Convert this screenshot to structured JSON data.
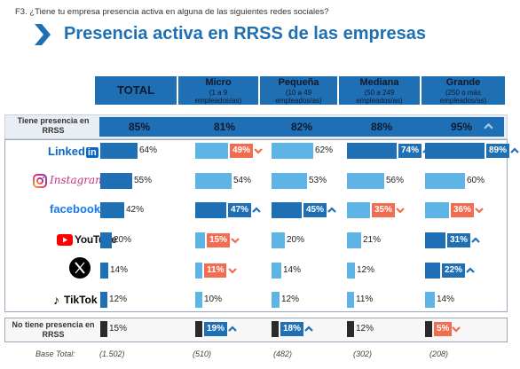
{
  "question": "F3. ¿Tiene tu empresa presencia activa en alguna de las siguientes redes sociales?",
  "title": "Presencia activa en RRSS de las empresas",
  "colors": {
    "primary": "#1f6fb4",
    "light": "#5fb4e6",
    "up": "#1f6fb4",
    "down": "#f26d4f",
    "dark": "#2b2b2b"
  },
  "headers": {
    "total": "TOTAL",
    "segments": [
      {
        "name": "Micro",
        "sub1": "(1 a 9",
        "sub2": "empleados/as)"
      },
      {
        "name": "Pequeña",
        "sub1": "(10 a 49",
        "sub2": "empleados/as)"
      },
      {
        "name": "Mediana",
        "sub1": "(50 a 249",
        "sub2": "empleados/as)"
      },
      {
        "name": "Grande",
        "sub1": "(250 o más",
        "sub2": "empleados/as)"
      }
    ]
  },
  "presence": {
    "label1": "Tiene presencia en",
    "label2": "RRSS",
    "values": [
      "85%",
      "81%",
      "82%",
      "88%",
      "95%"
    ],
    "arrow": "up"
  },
  "no_presence": {
    "label1": "No tiene presencia en",
    "label2": "RRSS"
  },
  "logos": {
    "linkedin": "Linked",
    "linkedin_in": "in",
    "instagram": "Instagram",
    "facebook": "facebook",
    "youtube": "YouTube",
    "tiktok": "TikTok"
  },
  "base": {
    "label": "Base Total:",
    "values": [
      "(1.502)",
      "(510)",
      "(482)",
      "(302)",
      "(208)"
    ]
  },
  "chart_data": {
    "type": "bar",
    "title": "Presencia activa en RRSS de las empresas",
    "categories": [
      "TOTAL",
      "Micro",
      "Pequeña",
      "Mediana",
      "Grande"
    ],
    "rows": [
      {
        "name": "LinkedIn",
        "values": [
          64,
          49,
          62,
          74,
          89
        ],
        "sig": [
          "",
          "down",
          "",
          "up",
          "up"
        ]
      },
      {
        "name": "Instagram",
        "values": [
          55,
          54,
          53,
          56,
          60
        ],
        "sig": [
          "",
          "",
          "",
          "",
          ""
        ]
      },
      {
        "name": "facebook",
        "values": [
          42,
          47,
          45,
          35,
          36
        ],
        "sig": [
          "",
          "up",
          "up",
          "down",
          "down"
        ]
      },
      {
        "name": "YouTube",
        "values": [
          20,
          15,
          20,
          21,
          31
        ],
        "sig": [
          "",
          "down",
          "",
          "",
          "up"
        ]
      },
      {
        "name": "X",
        "values": [
          14,
          11,
          14,
          12,
          22
        ],
        "sig": [
          "",
          "down",
          "",
          "",
          "up"
        ]
      },
      {
        "name": "TikTok",
        "values": [
          12,
          10,
          12,
          11,
          14
        ],
        "sig": [
          "",
          "",
          "",
          "",
          ""
        ]
      },
      {
        "name": "No tiene presencia en RRSS",
        "values": [
          15,
          19,
          18,
          12,
          5
        ],
        "sig": [
          "",
          "up",
          "up",
          "",
          "down"
        ]
      }
    ],
    "presence_row": {
      "name": "Tiene presencia en RRSS",
      "values": [
        85,
        81,
        82,
        88,
        95
      ]
    }
  }
}
